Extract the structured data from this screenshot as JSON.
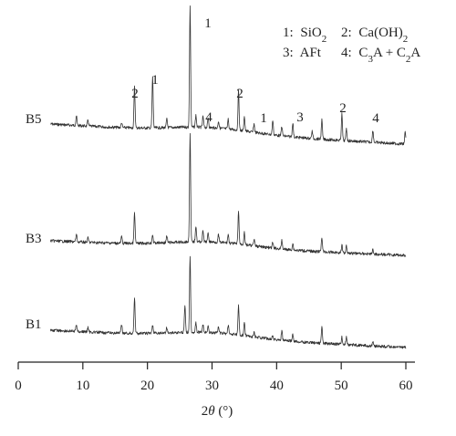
{
  "chart_data": {
    "type": "line",
    "xlabel": "2θ (°)",
    "xlim": [
      0,
      60
    ],
    "x_ticks": [
      "0",
      "10",
      "20",
      "30",
      "40",
      "50",
      "60"
    ],
    "y_axis_shown": false,
    "grid": false,
    "series": [
      {
        "name": "B5",
        "x_range": [
          5,
          60
        ],
        "peaks": [
          {
            "x": 9.0,
            "h": 0.08
          },
          {
            "x": 10.8,
            "h": 0.05
          },
          {
            "x": 16.0,
            "h": 0.04
          },
          {
            "x": 18.0,
            "h": 0.34
          },
          {
            "x": 20.8,
            "h": 0.42
          },
          {
            "x": 23.0,
            "h": 0.07
          },
          {
            "x": 26.6,
            "h": 1.0
          },
          {
            "x": 27.5,
            "h": 0.1
          },
          {
            "x": 28.6,
            "h": 0.09
          },
          {
            "x": 29.4,
            "h": 0.08
          },
          {
            "x": 31.0,
            "h": 0.06
          },
          {
            "x": 32.5,
            "h": 0.08
          },
          {
            "x": 34.1,
            "h": 0.33
          },
          {
            "x": 35.0,
            "h": 0.12
          },
          {
            "x": 36.5,
            "h": 0.07
          },
          {
            "x": 39.4,
            "h": 0.12
          },
          {
            "x": 40.8,
            "h": 0.08
          },
          {
            "x": 42.5,
            "h": 0.12
          },
          {
            "x": 45.5,
            "h": 0.06
          },
          {
            "x": 47.0,
            "h": 0.16
          },
          {
            "x": 50.1,
            "h": 0.22
          },
          {
            "x": 50.8,
            "h": 0.1
          },
          {
            "x": 54.9,
            "h": 0.1
          },
          {
            "x": 59.9,
            "h": 0.1
          }
        ]
      },
      {
        "name": "B3",
        "x_range": [
          5,
          60
        ],
        "peaks": [
          {
            "x": 9.0,
            "h": 0.07
          },
          {
            "x": 10.8,
            "h": 0.04
          },
          {
            "x": 16.0,
            "h": 0.06
          },
          {
            "x": 18.0,
            "h": 0.28
          },
          {
            "x": 20.8,
            "h": 0.08
          },
          {
            "x": 23.0,
            "h": 0.06
          },
          {
            "x": 26.6,
            "h": 1.0
          },
          {
            "x": 27.5,
            "h": 0.15
          },
          {
            "x": 28.6,
            "h": 0.1
          },
          {
            "x": 29.4,
            "h": 0.08
          },
          {
            "x": 31.0,
            "h": 0.07
          },
          {
            "x": 32.5,
            "h": 0.08
          },
          {
            "x": 34.1,
            "h": 0.3
          },
          {
            "x": 35.0,
            "h": 0.12
          },
          {
            "x": 36.5,
            "h": 0.06
          },
          {
            "x": 39.4,
            "h": 0.05
          },
          {
            "x": 40.8,
            "h": 0.08
          },
          {
            "x": 42.5,
            "h": 0.06
          },
          {
            "x": 47.0,
            "h": 0.14
          },
          {
            "x": 50.1,
            "h": 0.07
          },
          {
            "x": 50.8,
            "h": 0.07
          },
          {
            "x": 54.9,
            "h": 0.04
          }
        ]
      },
      {
        "name": "B1",
        "x_range": [
          5,
          60
        ],
        "peaks": [
          {
            "x": 9.0,
            "h": 0.08
          },
          {
            "x": 10.8,
            "h": 0.05
          },
          {
            "x": 16.0,
            "h": 0.09
          },
          {
            "x": 18.0,
            "h": 0.4
          },
          {
            "x": 20.8,
            "h": 0.09
          },
          {
            "x": 23.0,
            "h": 0.06
          },
          {
            "x": 25.8,
            "h": 0.3
          },
          {
            "x": 26.6,
            "h": 0.82
          },
          {
            "x": 27.5,
            "h": 0.1
          },
          {
            "x": 28.6,
            "h": 0.08
          },
          {
            "x": 29.4,
            "h": 0.07
          },
          {
            "x": 31.0,
            "h": 0.07
          },
          {
            "x": 32.5,
            "h": 0.1
          },
          {
            "x": 34.1,
            "h": 0.32
          },
          {
            "x": 35.0,
            "h": 0.14
          },
          {
            "x": 36.5,
            "h": 0.05
          },
          {
            "x": 39.4,
            "h": 0.05
          },
          {
            "x": 40.8,
            "h": 0.1
          },
          {
            "x": 42.5,
            "h": 0.07
          },
          {
            "x": 47.0,
            "h": 0.18
          },
          {
            "x": 50.1,
            "h": 0.08
          },
          {
            "x": 50.8,
            "h": 0.09
          },
          {
            "x": 54.9,
            "h": 0.04
          }
        ]
      }
    ],
    "peak_annotations": [
      {
        "text": "1",
        "x": 26.6
      },
      {
        "text": "2",
        "x": 18.0
      },
      {
        "text": "1",
        "x": 20.8
      },
      {
        "text": "4",
        "x": 28.6
      },
      {
        "text": "2",
        "x": 34.1
      },
      {
        "text": "1",
        "x": 37.0
      },
      {
        "text": "3",
        "x": 42.6
      },
      {
        "text": "2",
        "x": 50.1
      },
      {
        "text": "4",
        "x": 54.9
      }
    ],
    "legend": {
      "placement": "top-right",
      "entries": [
        {
          "num": "1:",
          "label": "SiO",
          "sub": "2"
        },
        {
          "num": "2:",
          "label": "Ca(OH)",
          "sub": "2"
        },
        {
          "num": "3:",
          "label": "AFt",
          "sub": ""
        },
        {
          "num": "4:",
          "label": "C3A + C2A",
          "sub": ""
        }
      ]
    }
  }
}
